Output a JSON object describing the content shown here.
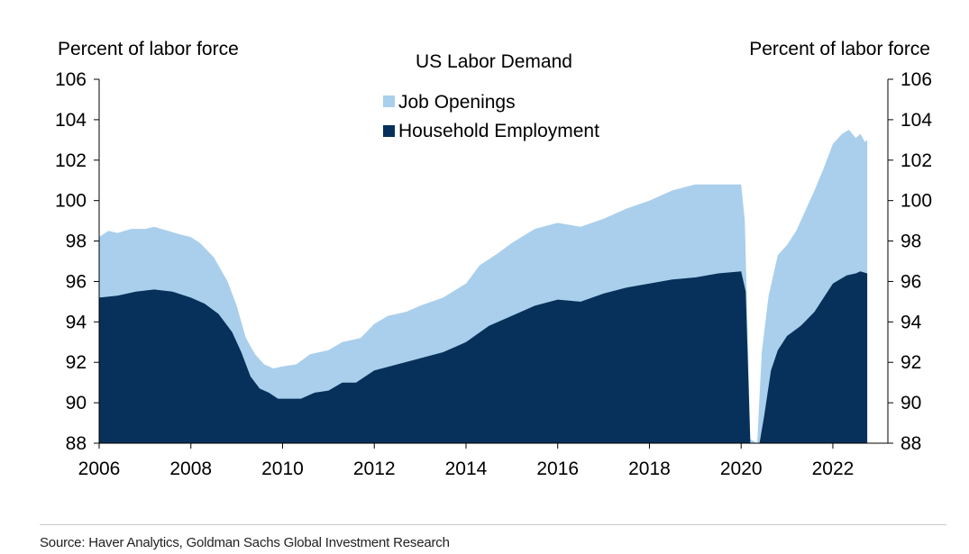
{
  "chart_data": {
    "type": "area",
    "title": "US Labor Demand",
    "ylabel_left": "Percent of labor force",
    "ylabel_right": "Percent of labor force",
    "ylim": [
      88,
      106
    ],
    "yticks": [
      88,
      90,
      92,
      94,
      96,
      98,
      100,
      102,
      104,
      106
    ],
    "xlim": [
      2006,
      2023.2
    ],
    "xticks": [
      2006,
      2008,
      2010,
      2012,
      2014,
      2016,
      2018,
      2020,
      2022
    ],
    "legend": "top-center",
    "series": [
      {
        "name": "Job Openings",
        "color": "#a9cfec",
        "stacked_on": "Household Employment",
        "points": [
          [
            2006.0,
            98.2
          ],
          [
            2006.2,
            98.5
          ],
          [
            2006.4,
            98.4
          ],
          [
            2006.7,
            98.6
          ],
          [
            2007.0,
            98.6
          ],
          [
            2007.2,
            98.7
          ],
          [
            2007.5,
            98.5
          ],
          [
            2007.8,
            98.3
          ],
          [
            2008.0,
            98.2
          ],
          [
            2008.2,
            97.9
          ],
          [
            2008.5,
            97.2
          ],
          [
            2008.8,
            96.0
          ],
          [
            2009.0,
            94.8
          ],
          [
            2009.2,
            93.2
          ],
          [
            2009.4,
            92.4
          ],
          [
            2009.6,
            91.9
          ],
          [
            2009.8,
            91.7
          ],
          [
            2010.0,
            91.8
          ],
          [
            2010.3,
            91.9
          ],
          [
            2010.6,
            92.4
          ],
          [
            2011.0,
            92.6
          ],
          [
            2011.3,
            93.0
          ],
          [
            2011.7,
            93.2
          ],
          [
            2012.0,
            93.9
          ],
          [
            2012.3,
            94.3
          ],
          [
            2012.7,
            94.5
          ],
          [
            2013.0,
            94.8
          ],
          [
            2013.5,
            95.2
          ],
          [
            2014.0,
            95.9
          ],
          [
            2014.3,
            96.8
          ],
          [
            2014.7,
            97.4
          ],
          [
            2015.0,
            97.9
          ],
          [
            2015.5,
            98.6
          ],
          [
            2016.0,
            98.9
          ],
          [
            2016.5,
            98.7
          ],
          [
            2017.0,
            99.1
          ],
          [
            2017.5,
            99.6
          ],
          [
            2018.0,
            100.0
          ],
          [
            2018.5,
            100.5
          ],
          [
            2019.0,
            100.8
          ],
          [
            2019.5,
            100.8
          ],
          [
            2020.0,
            100.8
          ],
          [
            2020.08,
            99.0
          ],
          [
            2020.2,
            88.2
          ],
          [
            2020.35,
            88.0
          ],
          [
            2020.45,
            92.5
          ],
          [
            2020.6,
            95.3
          ],
          [
            2020.8,
            97.3
          ],
          [
            2021.0,
            97.8
          ],
          [
            2021.2,
            98.5
          ],
          [
            2021.4,
            99.5
          ],
          [
            2021.6,
            100.5
          ],
          [
            2021.8,
            101.6
          ],
          [
            2022.0,
            102.8
          ],
          [
            2022.2,
            103.3
          ],
          [
            2022.35,
            103.5
          ],
          [
            2022.5,
            103.1
          ],
          [
            2022.6,
            103.3
          ],
          [
            2022.7,
            102.9
          ],
          [
            2022.75,
            103.0
          ]
        ]
      },
      {
        "name": "Household Employment",
        "color": "#07315a",
        "points": [
          [
            2006.0,
            95.2
          ],
          [
            2006.4,
            95.3
          ],
          [
            2006.8,
            95.5
          ],
          [
            2007.2,
            95.6
          ],
          [
            2007.6,
            95.5
          ],
          [
            2008.0,
            95.2
          ],
          [
            2008.3,
            94.9
          ],
          [
            2008.6,
            94.4
          ],
          [
            2008.9,
            93.5
          ],
          [
            2009.1,
            92.5
          ],
          [
            2009.3,
            91.3
          ],
          [
            2009.5,
            90.7
          ],
          [
            2009.7,
            90.5
          ],
          [
            2009.9,
            90.2
          ],
          [
            2010.1,
            90.2
          ],
          [
            2010.4,
            90.2
          ],
          [
            2010.7,
            90.5
          ],
          [
            2011.0,
            90.6
          ],
          [
            2011.3,
            91.0
          ],
          [
            2011.6,
            91.0
          ],
          [
            2012.0,
            91.6
          ],
          [
            2012.5,
            91.9
          ],
          [
            2013.0,
            92.2
          ],
          [
            2013.5,
            92.5
          ],
          [
            2014.0,
            93.0
          ],
          [
            2014.5,
            93.8
          ],
          [
            2015.0,
            94.3
          ],
          [
            2015.5,
            94.8
          ],
          [
            2016.0,
            95.1
          ],
          [
            2016.5,
            95.0
          ],
          [
            2017.0,
            95.4
          ],
          [
            2017.5,
            95.7
          ],
          [
            2018.0,
            95.9
          ],
          [
            2018.5,
            96.1
          ],
          [
            2019.0,
            96.2
          ],
          [
            2019.5,
            96.4
          ],
          [
            2020.0,
            96.5
          ],
          [
            2020.1,
            95.5
          ],
          [
            2020.2,
            88.0
          ],
          [
            2020.4,
            88.0
          ],
          [
            2020.5,
            89.3
          ],
          [
            2020.65,
            91.6
          ],
          [
            2020.8,
            92.6
          ],
          [
            2021.0,
            93.3
          ],
          [
            2021.3,
            93.8
          ],
          [
            2021.6,
            94.5
          ],
          [
            2021.8,
            95.2
          ],
          [
            2022.0,
            95.9
          ],
          [
            2022.3,
            96.3
          ],
          [
            2022.5,
            96.4
          ],
          [
            2022.6,
            96.5
          ],
          [
            2022.75,
            96.4
          ]
        ]
      }
    ],
    "source": "Source: Haver Analytics, Goldman Sachs Global Investment Research"
  }
}
